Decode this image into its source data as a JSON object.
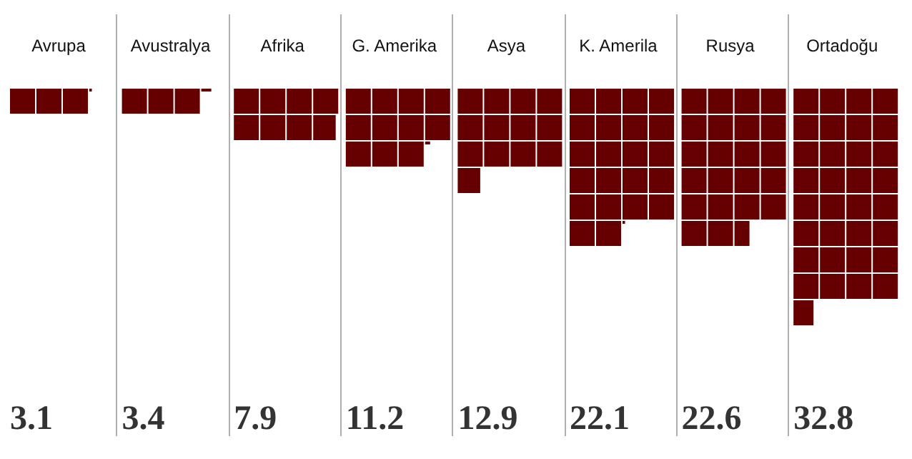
{
  "chart_data": {
    "type": "other",
    "categories": [
      "Avrupa",
      "Avustralya",
      "Afrika",
      "G. Amerika",
      "Asya",
      "K. Amerila",
      "Rusya",
      "Ortadoğu"
    ],
    "values": [
      3.1,
      3.4,
      7.9,
      11.2,
      12.9,
      22.1,
      22.6,
      32.8
    ],
    "color": "#660000",
    "data_labels": true
  }
}
